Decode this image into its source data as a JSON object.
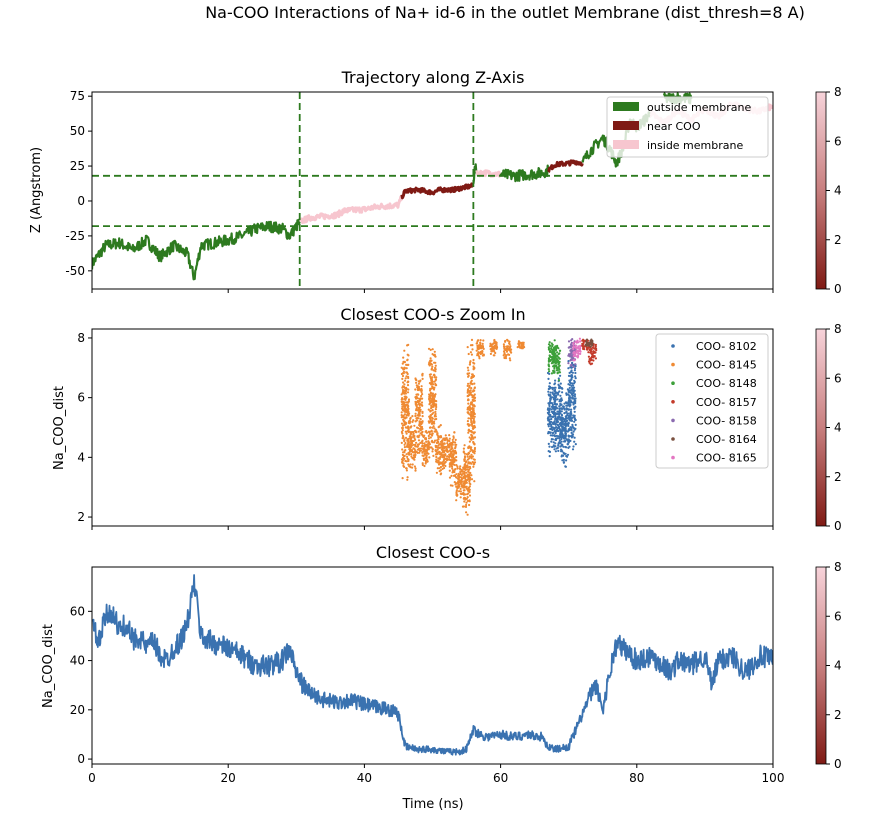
{
  "figure": {
    "suptitle": "Na-COO Interactions of Na+ id-6 in the outlet Membrane (dist_thresh=8 A)",
    "xlabel": "Time (ns)"
  },
  "colors": {
    "outside": "#2d7a1f",
    "near": "#7f1a14",
    "inside": "#f7c6cf",
    "thresh_line": "#2d7a1f",
    "closest_line": "#3a72b0",
    "coo_8102": "#3a72b0",
    "coo_8145": "#ef8a33",
    "coo_8148": "#3da03a",
    "coo_8157": "#c33a2a",
    "coo_8158": "#8b6bb0",
    "coo_8164": "#7a5040",
    "coo_8165": "#e377c2"
  },
  "chart_data": [
    {
      "type": "line",
      "title": "Trajectory along Z-Axis",
      "ylabel": "Z (Angstrom)",
      "xlim": [
        0,
        100
      ],
      "ylim": [
        -63,
        78
      ],
      "yticks": [
        "-50",
        "-25",
        "0",
        "25",
        "50",
        "75"
      ],
      "ytick_values": [
        -50,
        -25,
        0,
        25,
        50,
        75
      ],
      "xticks": [
        0,
        20,
        40,
        60,
        80,
        100
      ],
      "hlines": [
        18,
        -18
      ],
      "vlines": [
        30.5,
        56
      ],
      "legend": {
        "position": "top-right",
        "entries": [
          "outside membrane",
          "near COO",
          "inside membrane"
        ]
      },
      "segments": [
        {
          "state": "outside",
          "points": [
            [
              0,
              -45
            ],
            [
              2,
              -32
            ],
            [
              4,
              -30
            ],
            [
              6,
              -35
            ],
            [
              8,
              -28
            ],
            [
              10,
              -40
            ],
            [
              12,
              -32
            ],
            [
              14,
              -38
            ],
            [
              15,
              -55
            ],
            [
              16,
              -32
            ],
            [
              18,
              -30
            ],
            [
              20,
              -28
            ],
            [
              22,
              -25
            ],
            [
              24,
              -20
            ],
            [
              26,
              -18
            ],
            [
              28,
              -20
            ],
            [
              29,
              -25
            ],
            [
              30.5,
              -15
            ]
          ]
        },
        {
          "state": "inside",
          "points": [
            [
              30.5,
              -15
            ],
            [
              32,
              -12
            ],
            [
              34,
              -11
            ],
            [
              36,
              -10
            ],
            [
              37,
              -7
            ],
            [
              40,
              -6
            ],
            [
              42,
              -4
            ],
            [
              45,
              -3
            ],
            [
              45.5,
              3
            ]
          ]
        },
        {
          "state": "near",
          "points": [
            [
              45.5,
              3
            ],
            [
              46,
              7
            ],
            [
              48,
              8
            ],
            [
              50,
              6
            ],
            [
              51,
              8
            ],
            [
              53,
              8
            ],
            [
              55,
              10
            ],
            [
              56,
              11
            ]
          ]
        },
        {
          "state": "outside",
          "points": [
            [
              56,
              11
            ],
            [
              56.2,
              27
            ],
            [
              56.5,
              20
            ]
          ]
        },
        {
          "state": "inside",
          "points": [
            [
              56.5,
              20
            ],
            [
              58,
              20
            ],
            [
              60,
              19
            ]
          ]
        },
        {
          "state": "outside",
          "points": [
            [
              60,
              19
            ],
            [
              62,
              18
            ],
            [
              64,
              19
            ],
            [
              66,
              20
            ],
            [
              67,
              22
            ]
          ]
        },
        {
          "state": "near",
          "points": [
            [
              67,
              22
            ],
            [
              68,
              26
            ],
            [
              70,
              27
            ],
            [
              71,
              28
            ],
            [
              72,
              27
            ]
          ]
        },
        {
          "state": "outside",
          "points": [
            [
              72,
              27
            ],
            [
              73,
              35
            ],
            [
              74,
              40
            ],
            [
              75,
              45
            ],
            [
              76,
              38
            ],
            [
              77,
              27
            ],
            [
              78,
              38
            ],
            [
              79,
              58
            ],
            [
              80,
              53
            ],
            [
              81,
              57
            ],
            [
              82,
              63
            ]
          ]
        },
        {
          "state": "inside",
          "points": [
            [
              82,
              63
            ],
            [
              84,
              56
            ],
            [
              86,
              65
            ],
            [
              88,
              58
            ],
            [
              90,
              66
            ],
            [
              92,
              60
            ],
            [
              94,
              70
            ],
            [
              96,
              66
            ],
            [
              98,
              64
            ],
            [
              100,
              68
            ]
          ]
        },
        {
          "state": "outside",
          "points": [
            [
              84,
              73
            ],
            [
              86,
              74
            ],
            [
              88,
              73
            ]
          ]
        }
      ],
      "colorbar": {
        "ticks": [
          "0",
          "2",
          "4",
          "6",
          "8"
        ],
        "tick_values": [
          0,
          2,
          4,
          6,
          8
        ]
      }
    },
    {
      "type": "scatter",
      "title": "Closest COO-s Zoom In",
      "ylabel": "Na_COO_dist",
      "xlim": [
        0,
        100
      ],
      "ylim": [
        1.7,
        8.3
      ],
      "yticks": [
        "2",
        "4",
        "6",
        "8"
      ],
      "ytick_values": [
        2,
        4,
        6,
        8
      ],
      "xticks": [
        0,
        20,
        40,
        60,
        80,
        100
      ],
      "legend": {
        "position": "top-right",
        "entries": [
          "COO- 8102",
          "COO- 8145",
          "COO- 8148",
          "COO- 8157",
          "COO- 8158",
          "COO- 8164",
          "COO- 8165"
        ]
      },
      "series": [
        {
          "name": "COO- 8102",
          "color_key": "coo_8102",
          "clusters": [
            [
              67.5,
              4.0,
              7.0
            ],
            [
              68.5,
              3.8,
              6.8
            ],
            [
              69.5,
              3.5,
              6.5
            ],
            [
              70.5,
              4.2,
              7.8
            ]
          ]
        },
        {
          "name": "COO- 8145",
          "color_key": "coo_8145",
          "clusters": [
            [
              46,
              3.2,
              7.9
            ],
            [
              47,
              3.5,
              5.5
            ],
            [
              48,
              4.0,
              7.0
            ],
            [
              49,
              3.6,
              5.0
            ],
            [
              50,
              3.8,
              7.8
            ],
            [
              51,
              3.3,
              5.2
            ],
            [
              52,
              3.5,
              4.8
            ],
            [
              53,
              3.0,
              5.0
            ],
            [
              54,
              2.5,
              3.8
            ],
            [
              55,
              2.0,
              4.5
            ],
            [
              55.7,
              3.0,
              8.0
            ],
            [
              57,
              7.3,
              8.0
            ],
            [
              59,
              7.4,
              8.0
            ],
            [
              61,
              7.2,
              8.0
            ],
            [
              63,
              7.6,
              8.0
            ]
          ]
        },
        {
          "name": "COO- 8148",
          "color_key": "coo_8148",
          "clusters": [
            [
              67.6,
              6.8,
              8.0
            ],
            [
              68.2,
              6.5,
              7.9
            ]
          ]
        },
        {
          "name": "COO- 8157",
          "color_key": "coo_8157",
          "clusters": [
            [
              72.5,
              7.5,
              8.0
            ],
            [
              73.5,
              7.1,
              7.9
            ]
          ]
        },
        {
          "name": "COO- 8158",
          "color_key": "coo_8158",
          "clusters": [
            [
              70.5,
              7.0,
              8.0
            ]
          ]
        },
        {
          "name": "COO- 8164",
          "color_key": "coo_8164",
          "clusters": [
            [
              73.0,
              7.7,
              8.0
            ]
          ]
        },
        {
          "name": "COO- 8165",
          "color_key": "coo_8165",
          "clusters": [
            [
              71.2,
              7.2,
              8.0
            ]
          ]
        }
      ],
      "colorbar": {
        "ticks": [
          "0",
          "2",
          "4",
          "6",
          "8"
        ],
        "tick_values": [
          0,
          2,
          4,
          6,
          8
        ]
      }
    },
    {
      "type": "line",
      "title": "Closest COO-s",
      "ylabel": "Na_COO_dist",
      "xlim": [
        0,
        100
      ],
      "ylim": [
        -2,
        78
      ],
      "yticks": [
        "0",
        "20",
        "40",
        "60"
      ],
      "ytick_values": [
        0,
        20,
        40,
        60
      ],
      "xticks": [
        0,
        20,
        40,
        60,
        80,
        100
      ],
      "xtick_labels": [
        "0",
        "20",
        "40",
        "60",
        "80",
        "100"
      ],
      "series": [
        {
          "points": [
            [
              0,
              55
            ],
            [
              1,
              47
            ],
            [
              2,
              58
            ],
            [
              3,
              60
            ],
            [
              4,
              52
            ],
            [
              5,
              55
            ],
            [
              6,
              48
            ],
            [
              7,
              50
            ],
            [
              8,
              45
            ],
            [
              9,
              48
            ],
            [
              10,
              42
            ],
            [
              11,
              40
            ],
            [
              12,
              45
            ],
            [
              13,
              48
            ],
            [
              14,
              55
            ],
            [
              15,
              72
            ],
            [
              16,
              50
            ],
            [
              18,
              47
            ],
            [
              20,
              45
            ],
            [
              22,
              42
            ],
            [
              24,
              38
            ],
            [
              26,
              38
            ],
            [
              28,
              40
            ],
            [
              29,
              45
            ],
            [
              30,
              35
            ],
            [
              31,
              30
            ],
            [
              32,
              27
            ],
            [
              34,
              24
            ],
            [
              36,
              23
            ],
            [
              38,
              24
            ],
            [
              40,
              22
            ],
            [
              42,
              21
            ],
            [
              44,
              20
            ],
            [
              45,
              18
            ],
            [
              46,
              5
            ],
            [
              48,
              4
            ],
            [
              50,
              4
            ],
            [
              52,
              3
            ],
            [
              54,
              3
            ],
            [
              55,
              4
            ],
            [
              56,
              12
            ],
            [
              57,
              10
            ],
            [
              58,
              9
            ],
            [
              60,
              10
            ],
            [
              62,
              9
            ],
            [
              64,
              10
            ],
            [
              66,
              9
            ],
            [
              67,
              5
            ],
            [
              68,
              4
            ],
            [
              70,
              5
            ],
            [
              72,
              18
            ],
            [
              73,
              25
            ],
            [
              74,
              30
            ],
            [
              75,
              20
            ],
            [
              76,
              35
            ],
            [
              77,
              47
            ],
            [
              78,
              45
            ],
            [
              80,
              40
            ],
            [
              82,
              42
            ],
            [
              84,
              38
            ],
            [
              85,
              35
            ],
            [
              86,
              40
            ],
            [
              88,
              38
            ],
            [
              90,
              42
            ],
            [
              91,
              30
            ],
            [
              92,
              40
            ],
            [
              94,
              42
            ],
            [
              96,
              35
            ],
            [
              98,
              42
            ],
            [
              100,
              40
            ]
          ]
        }
      ],
      "colorbar": {
        "ticks": [
          "0",
          "2",
          "4",
          "6",
          "8"
        ],
        "tick_values": [
          0,
          2,
          4,
          6,
          8
        ]
      }
    }
  ]
}
